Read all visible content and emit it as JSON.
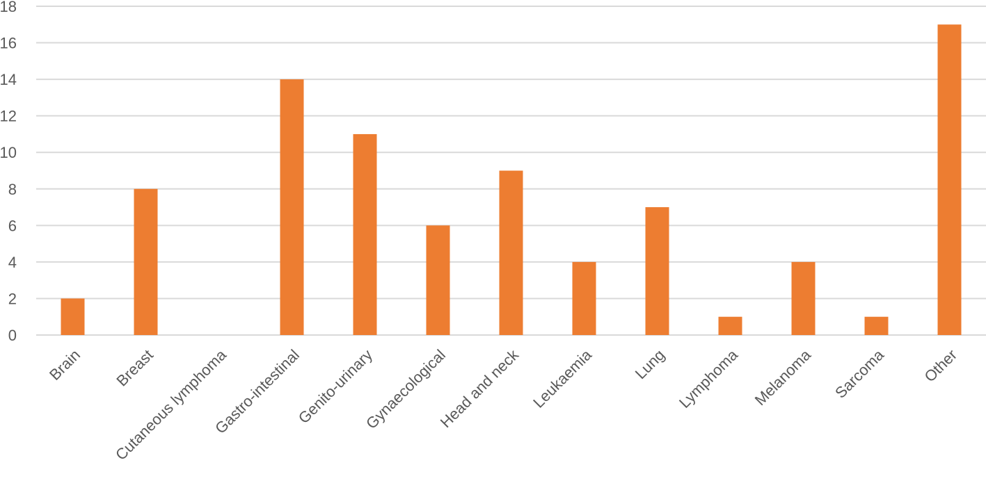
{
  "chart_data": {
    "type": "bar",
    "title": "",
    "xlabel": "",
    "ylabel": "",
    "categories": [
      "Brain",
      "Breast",
      "Cutaneous lymphoma",
      "Gastro-intestinal",
      "Genito-urinary",
      "Gynaecological",
      "Head and neck",
      "Leukaemia",
      "Lung",
      "Lymphoma",
      "Melanoma",
      "Sarcoma",
      "Other"
    ],
    "values": [
      2,
      8,
      0,
      14,
      11,
      6,
      9,
      4,
      7,
      1,
      4,
      1,
      17
    ],
    "ylim": [
      0,
      18
    ],
    "yticks": [
      0,
      2,
      4,
      6,
      8,
      10,
      12,
      14,
      16,
      18
    ],
    "grid": true,
    "legend": "none",
    "bar_color": "#ed7d31",
    "grid_color": "#d9d9d9",
    "text_color": "#595959"
  }
}
